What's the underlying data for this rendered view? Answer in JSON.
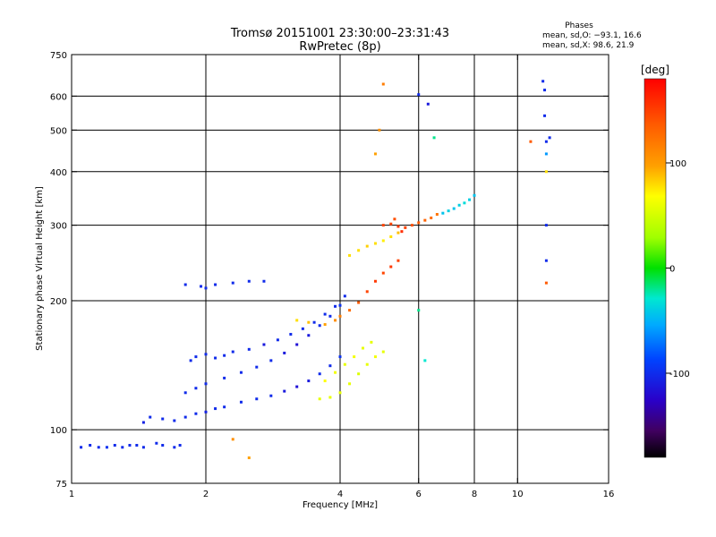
{
  "chart_data": {
    "type": "scatter",
    "title": "Tromsø 20151001 23:30:00–23:31:43",
    "subtitle": "RwPretec (8p)",
    "xlabel": "Frequency [MHz]",
    "ylabel": "Stationary phase Virtual Height [km]",
    "x_scale": "log",
    "y_scale": "log",
    "xlim": [
      1,
      16
    ],
    "ylim": [
      75,
      750
    ],
    "x_ticks": [
      1,
      2,
      4,
      6,
      8,
      10,
      16
    ],
    "y_ticks": [
      75,
      100,
      200,
      300,
      400,
      500,
      600,
      750
    ],
    "x_gridlines": [
      2,
      4,
      6,
      8,
      10
    ],
    "y_gridlines": [
      100,
      200,
      300,
      400,
      500,
      600
    ],
    "grid": true,
    "phase_stats": {
      "title": "Phases",
      "line1": "mean, sd,O: −93.1, 16.6",
      "line2": "mean, sd,X:  98.6, 21.9"
    },
    "colorbar": {
      "label": "[deg]",
      "range": [
        -180,
        180
      ],
      "ticks": [
        100,
        0,
        -100
      ]
    },
    "series": [
      {
        "points": [
          [
            1.05,
            91,
            -100
          ],
          [
            1.1,
            92,
            -100
          ],
          [
            1.15,
            91,
            -100
          ],
          [
            1.2,
            91,
            -95
          ],
          [
            1.25,
            92,
            -100
          ],
          [
            1.3,
            91,
            -100
          ],
          [
            1.35,
            92,
            -100
          ],
          [
            1.4,
            92,
            -100
          ],
          [
            1.45,
            91,
            -100
          ],
          [
            1.55,
            93,
            -100
          ],
          [
            1.6,
            92,
            -100
          ],
          [
            1.7,
            91,
            -100
          ],
          [
            1.75,
            92,
            -100
          ]
        ]
      },
      {
        "points": [
          [
            1.45,
            104,
            -105
          ],
          [
            1.5,
            107,
            -100
          ],
          [
            1.6,
            106,
            -100
          ],
          [
            1.7,
            105,
            -100
          ],
          [
            1.8,
            107,
            -100
          ],
          [
            1.9,
            109,
            -100
          ],
          [
            2.0,
            110,
            -105
          ],
          [
            2.1,
            112,
            -100
          ],
          [
            2.2,
            113,
            -100
          ],
          [
            2.4,
            116,
            -100
          ],
          [
            2.6,
            118,
            -100
          ],
          [
            2.8,
            120,
            -100
          ],
          [
            3.0,
            123,
            -110
          ],
          [
            3.2,
            126,
            -115
          ],
          [
            3.4,
            130,
            -110
          ],
          [
            3.6,
            135,
            -100
          ],
          [
            3.8,
            141,
            -100
          ],
          [
            4.0,
            148,
            -95
          ]
        ]
      },
      {
        "points": [
          [
            1.8,
            122,
            -100
          ],
          [
            1.9,
            125,
            -100
          ],
          [
            2.0,
            128,
            -100
          ],
          [
            2.2,
            132,
            -100
          ],
          [
            2.4,
            136,
            -100
          ],
          [
            2.6,
            140,
            -100
          ],
          [
            2.8,
            145,
            -100
          ],
          [
            3.0,
            151,
            -110
          ],
          [
            3.2,
            158,
            -115
          ],
          [
            3.4,
            166,
            -110
          ],
          [
            3.6,
            175,
            -100
          ],
          [
            3.8,
            184,
            -100
          ],
          [
            4.0,
            195,
            -95
          ]
        ]
      },
      {
        "points": [
          [
            1.85,
            145,
            -100
          ],
          [
            1.9,
            148,
            -100
          ],
          [
            2.0,
            150,
            -100
          ],
          [
            2.1,
            147,
            -100
          ],
          [
            2.2,
            149,
            -100
          ],
          [
            2.3,
            152,
            -100
          ],
          [
            2.5,
            154,
            -100
          ],
          [
            2.7,
            158,
            -110
          ],
          [
            2.9,
            162,
            -100
          ],
          [
            3.1,
            167,
            -100
          ],
          [
            3.3,
            172,
            -100
          ],
          [
            3.5,
            178,
            -100
          ],
          [
            3.7,
            186,
            -100
          ],
          [
            3.9,
            194,
            -100
          ],
          [
            4.1,
            205,
            -100
          ]
        ]
      },
      {
        "points": [
          [
            1.8,
            218,
            -100
          ],
          [
            1.95,
            216,
            -100
          ],
          [
            2.0,
            214,
            -100
          ],
          [
            2.1,
            218,
            -100
          ],
          [
            2.3,
            220,
            -100
          ],
          [
            2.5,
            222,
            -100
          ],
          [
            2.7,
            222,
            -100
          ]
        ]
      },
      {
        "points": [
          [
            3.6,
            118,
            60
          ],
          [
            3.8,
            119,
            60
          ],
          [
            4.0,
            122,
            60
          ],
          [
            4.2,
            128,
            60
          ],
          [
            4.4,
            135,
            55
          ],
          [
            4.6,
            142,
            60
          ],
          [
            4.8,
            148,
            65
          ],
          [
            5.0,
            152,
            60
          ],
          [
            3.7,
            130,
            70
          ],
          [
            3.9,
            136,
            65
          ],
          [
            4.1,
            142,
            60
          ],
          [
            4.3,
            148,
            65
          ],
          [
            4.5,
            155,
            60
          ],
          [
            4.7,
            160,
            60
          ]
        ]
      },
      {
        "points": [
          [
            3.2,
            180,
            80
          ],
          [
            3.4,
            178,
            90
          ],
          [
            3.7,
            176,
            100
          ],
          [
            3.9,
            180,
            110
          ],
          [
            4.0,
            184,
            120
          ],
          [
            4.2,
            190,
            130
          ],
          [
            4.4,
            198,
            140
          ],
          [
            4.6,
            210,
            150
          ],
          [
            4.8,
            222,
            155
          ],
          [
            5.0,
            232,
            150
          ],
          [
            5.2,
            240,
            155
          ],
          [
            5.4,
            248,
            150
          ]
        ]
      },
      {
        "points": [
          [
            4.2,
            255,
            80
          ],
          [
            4.4,
            262,
            80
          ],
          [
            4.6,
            268,
            85
          ],
          [
            4.8,
            272,
            80
          ],
          [
            5.0,
            276,
            75
          ],
          [
            5.2,
            282,
            80
          ],
          [
            5.4,
            288,
            90
          ]
        ]
      },
      {
        "points": [
          [
            5.0,
            300,
            150
          ],
          [
            5.2,
            302,
            150
          ],
          [
            5.4,
            298,
            155
          ],
          [
            5.6,
            296,
            150
          ],
          [
            5.8,
            300,
            145
          ],
          [
            6.0,
            304,
            140
          ],
          [
            6.2,
            308,
            135
          ],
          [
            6.4,
            312,
            130
          ],
          [
            6.6,
            318,
            125
          ],
          [
            5.3,
            310,
            145
          ],
          [
            5.5,
            290,
            160
          ]
        ]
      },
      {
        "points": [
          [
            6.8,
            320,
            -45
          ],
          [
            7.0,
            324,
            -40
          ],
          [
            7.2,
            328,
            -45
          ],
          [
            7.4,
            334,
            -40
          ],
          [
            7.6,
            338,
            -35
          ],
          [
            7.8,
            344,
            -40
          ],
          [
            8.0,
            352,
            -45
          ]
        ]
      },
      {
        "points": [
          [
            6.0,
            605,
            -100
          ],
          [
            6.3,
            575,
            -110
          ],
          [
            6.5,
            480,
            -20
          ],
          [
            5.0,
            640,
            120
          ],
          [
            11.4,
            650,
            -100
          ],
          [
            11.5,
            620,
            -100
          ],
          [
            11.5,
            540,
            -100
          ],
          [
            11.6,
            470,
            -100
          ],
          [
            11.8,
            480,
            -100
          ],
          [
            10.7,
            470,
            140
          ],
          [
            11.6,
            440,
            -60
          ],
          [
            11.6,
            400,
            80
          ],
          [
            11.6,
            300,
            -100
          ],
          [
            11.6,
            248,
            -100
          ],
          [
            11.6,
            220,
            140
          ],
          [
            4.9,
            500,
            110
          ],
          [
            4.8,
            440,
            100
          ],
          [
            6.0,
            190,
            -20
          ],
          [
            6.2,
            145,
            -30
          ],
          [
            2.5,
            86,
            100
          ],
          [
            2.3,
            95,
            110
          ]
        ]
      }
    ]
  }
}
